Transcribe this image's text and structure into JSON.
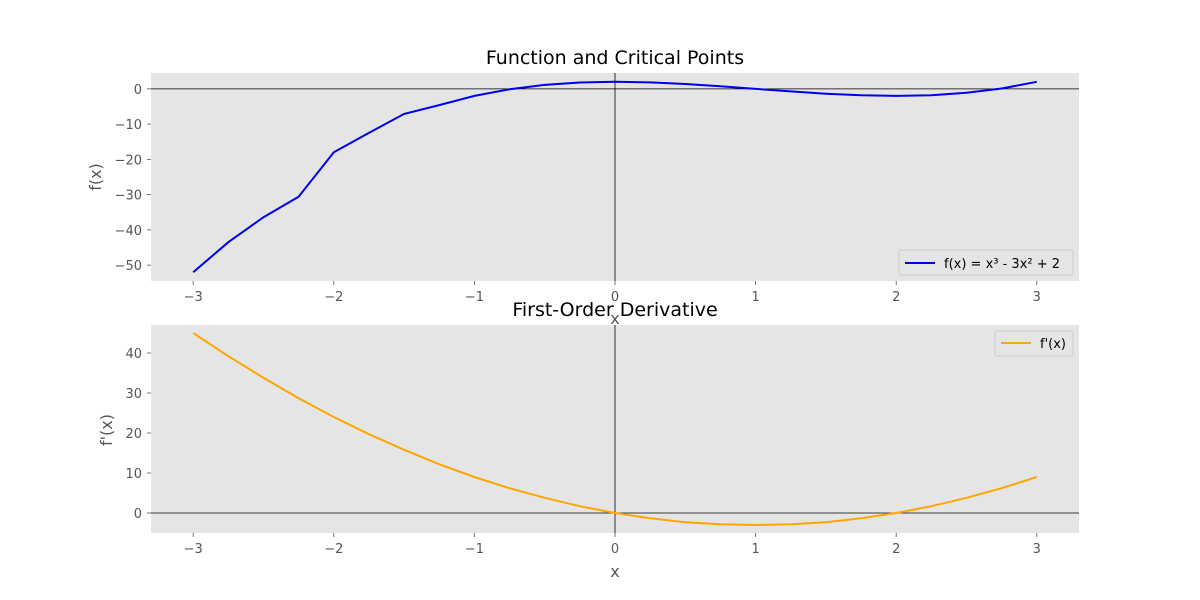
{
  "chart_data": [
    {
      "type": "line",
      "title": "Function and Critical Points",
      "xlabel": "x",
      "ylabel": "f(x)",
      "xlim": [
        -3.3,
        3.3
      ],
      "ylim": [
        -54.5,
        4.5
      ],
      "xticks": [
        -3,
        -2,
        -1,
        0,
        1,
        2,
        3
      ],
      "xtick_labels": [
        "−3",
        "−2",
        "−1",
        "0",
        "1",
        "2",
        "3"
      ],
      "yticks": [
        0,
        -10,
        -20,
        -30,
        -40,
        -50
      ],
      "ytick_labels": [
        "0",
        "−10",
        "−20",
        "−30",
        "−40",
        "−50"
      ],
      "grid": false,
      "background": "#e5e5e5",
      "reference_lines": {
        "x": 0,
        "y": 0
      },
      "legend": {
        "placement": "lower-right"
      },
      "series": [
        {
          "name": "f(x) = x³ - 3x² + 2",
          "color": "#0000ee",
          "x": [
            -3,
            -2.75,
            -2.5,
            -2.25,
            -2,
            -1.75,
            -1.5,
            -1.25,
            -1,
            -0.75,
            -0.5,
            -0.25,
            0,
            0.25,
            0.5,
            0.75,
            1,
            1.25,
            1.5,
            1.75,
            2,
            2.25,
            2.5,
            2.75,
            3
          ],
          "y": [
            -52,
            -43.5,
            -36.4,
            -30.6,
            -18,
            -12.5,
            -7.1,
            -4.6,
            -2,
            -0.11,
            1.13,
            1.8,
            2,
            1.83,
            1.38,
            0.73,
            0,
            -0.73,
            -1.38,
            -1.83,
            -2,
            -1.8,
            -1.13,
            0.11,
            2
          ]
        }
      ]
    },
    {
      "type": "line",
      "title": "First-Order Derivative",
      "xlabel": "x",
      "ylabel": "f'(x)",
      "xlim": [
        -3.3,
        3.3
      ],
      "ylim": [
        -5,
        47
      ],
      "xticks": [
        -3,
        -2,
        -1,
        0,
        1,
        2,
        3
      ],
      "xtick_labels": [
        "−3",
        "−2",
        "−1",
        "0",
        "1",
        "2",
        "3"
      ],
      "yticks": [
        0,
        10,
        20,
        30,
        40
      ],
      "ytick_labels": [
        "0",
        "10",
        "20",
        "30",
        "40"
      ],
      "grid": false,
      "background": "#e5e5e5",
      "reference_lines": {
        "x": 0,
        "y": 0
      },
      "legend": {
        "placement": "upper-right"
      },
      "series": [
        {
          "name": "f'(x)",
          "color": "#ffa500",
          "x": [
            -3,
            -2.75,
            -2.5,
            -2.25,
            -2,
            -1.75,
            -1.5,
            -1.25,
            -1,
            -0.75,
            -0.5,
            -0.25,
            0,
            0.25,
            0.5,
            0.75,
            1,
            1.25,
            1.5,
            1.75,
            2,
            2.25,
            2.5,
            2.75,
            3
          ],
          "y": [
            45,
            39.2,
            33.8,
            28.7,
            24,
            19.7,
            15.8,
            12.2,
            9,
            6.2,
            3.8,
            1.7,
            0,
            -1.3,
            -2.3,
            -2.8,
            -3,
            -2.8,
            -2.3,
            -1.3,
            0,
            1.7,
            3.8,
            6.2,
            9
          ]
        }
      ]
    }
  ]
}
